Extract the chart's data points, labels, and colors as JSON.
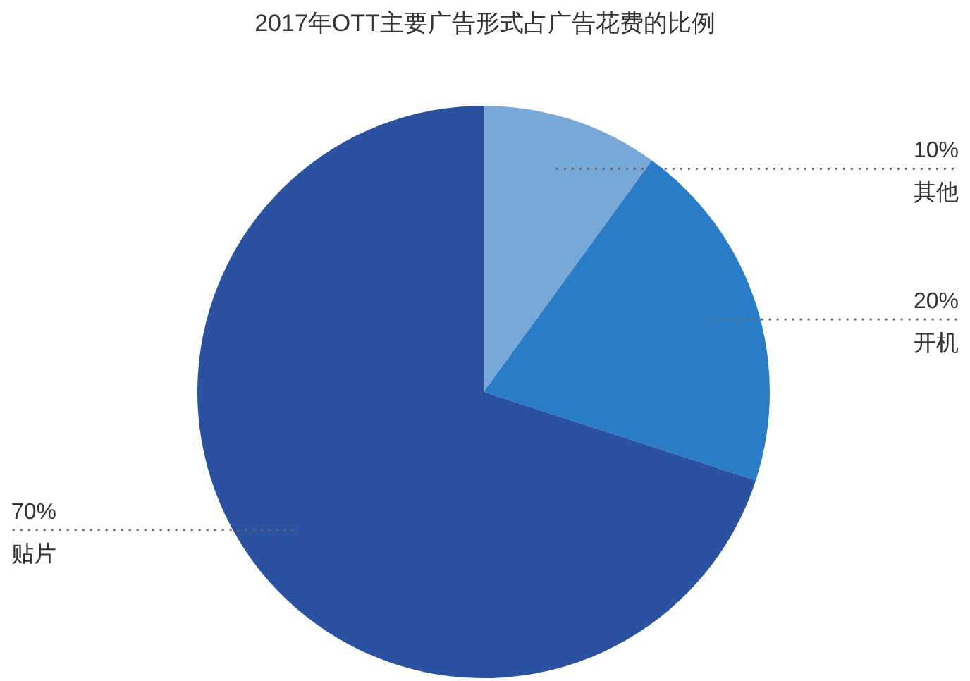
{
  "chart_data": {
    "type": "pie",
    "title": "2017年OTT主要广告形式占广告花费的比例",
    "categories": [
      "其他",
      "开机",
      "贴片"
    ],
    "values": [
      10,
      20,
      70
    ],
    "colors": [
      "#78a8d8",
      "#2a7cc6",
      "#2a52a0"
    ],
    "value_labels": [
      "10%",
      "20%",
      "70%"
    ]
  }
}
